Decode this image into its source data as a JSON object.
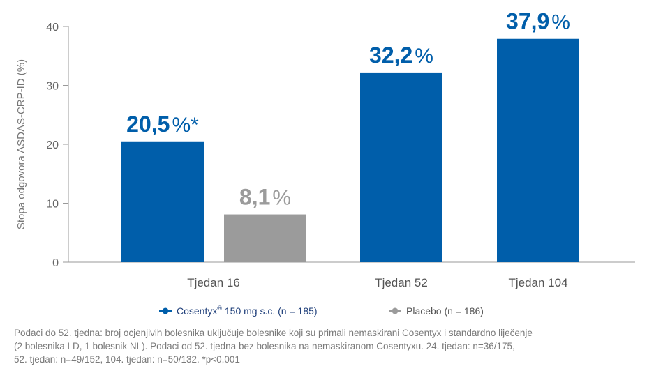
{
  "chart_data": {
    "type": "bar",
    "ylabel": "Stopa odgovora ASDAS-CRP-ID (%)",
    "ylim": [
      0,
      40
    ],
    "yticks": [
      0,
      10,
      20,
      30,
      40
    ],
    "categories": [
      "Tjedan 16",
      "Tjedan 52",
      "Tjedan 104"
    ],
    "series": [
      {
        "name": "Cosentyx® 150 mg s.c. (n = 185)",
        "color": "#005eaa",
        "values": [
          20.5,
          32.2,
          37.9
        ]
      },
      {
        "name": "Placebo (n = 186)",
        "color": "#9b9b9b",
        "values": [
          8.1,
          null,
          null
        ]
      }
    ],
    "bar_labels": [
      {
        "category": "Tjedan 16",
        "series": 0,
        "number": "20,5",
        "suffix": "%*"
      },
      {
        "category": "Tjedan 16",
        "series": 1,
        "number": "8,1",
        "suffix": "%"
      },
      {
        "category": "Tjedan 52",
        "series": 0,
        "number": "32,2",
        "suffix": "%"
      },
      {
        "category": "Tjedan 104",
        "series": 0,
        "number": "37,9",
        "suffix": "%"
      }
    ],
    "grid": false,
    "legend_position": "bottom"
  },
  "legend": {
    "cosentyx_brand": "Cosentyx",
    "cosentyx_reg": "®",
    "cosentyx_rest": " 150 mg s.c. (n = 185)",
    "placebo": "Placebo (n = 186)"
  },
  "footnote": {
    "line1": "Podaci do 52. tjedna: broj ocjenjivih bolesnika uključuje bolesnike koji su primali nemaskirani Cosentyx i standardno liječenje",
    "line2": "(2 bolesnika LD, 1 bolesnik NL). Podaci od 52. tjedna bez bolesnika na nemaskiranom Cosentyxu. 24. tjedan: n=36/175,",
    "line3": "52. tjedan: n=49/152, 104. tjedan: n=50/132. *p<0,001"
  },
  "colors": {
    "cosentyx": "#005eaa",
    "placebo": "#9b9b9b",
    "axis": "#999999"
  }
}
